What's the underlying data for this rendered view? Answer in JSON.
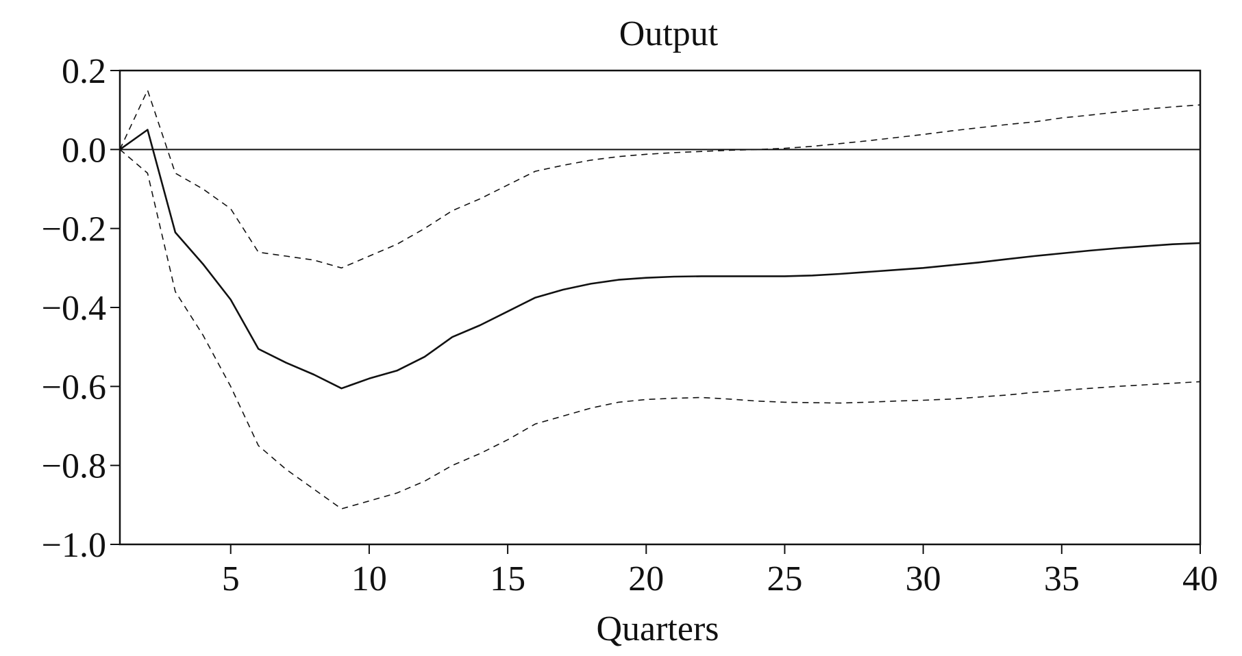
{
  "chart_data": {
    "type": "line",
    "title": "Output",
    "xlabel": "Quarters",
    "ylabel": "",
    "xlim": [
      1,
      40
    ],
    "ylim": [
      -1.0,
      0.2
    ],
    "xticks": [
      5,
      10,
      15,
      20,
      25,
      30,
      35,
      40
    ],
    "xtick_labels": [
      "5",
      "10",
      "15",
      "20",
      "25",
      "30",
      "35",
      "40"
    ],
    "yticks": [
      0.2,
      0.0,
      -0.2,
      -0.4,
      -0.6,
      -0.8,
      -1.0
    ],
    "ytick_labels": [
      "0.2",
      "0.0",
      "−0.2",
      "−0.4",
      "−0.6",
      "−0.8",
      "−1.0"
    ],
    "grid": false,
    "reference_line": 0.0,
    "x": [
      1,
      2,
      3,
      4,
      5,
      6,
      7,
      8,
      9,
      10,
      11,
      12,
      13,
      14,
      15,
      16,
      17,
      18,
      19,
      20,
      21,
      22,
      23,
      24,
      25,
      26,
      27,
      28,
      29,
      30,
      31,
      32,
      33,
      34,
      35,
      36,
      37,
      38,
      39,
      40
    ],
    "series": [
      {
        "style": "solid",
        "values": [
          0.0,
          0.05,
          -0.21,
          -0.29,
          -0.38,
          -0.505,
          -0.54,
          -0.57,
          -0.605,
          -0.58,
          -0.56,
          -0.525,
          -0.475,
          -0.445,
          -0.41,
          -0.375,
          -0.355,
          -0.34,
          -0.33,
          -0.325,
          -0.322,
          -0.321,
          -0.321,
          -0.321,
          -0.321,
          -0.319,
          -0.315,
          -0.31,
          -0.305,
          -0.3,
          -0.293,
          -0.286,
          -0.278,
          -0.27,
          -0.263,
          -0.256,
          -0.25,
          -0.245,
          -0.24,
          -0.237
        ]
      },
      {
        "style": "dashed",
        "values": [
          0.0,
          0.15,
          -0.06,
          -0.1,
          -0.15,
          -0.26,
          -0.27,
          -0.28,
          -0.3,
          -0.27,
          -0.24,
          -0.2,
          -0.155,
          -0.125,
          -0.09,
          -0.055,
          -0.04,
          -0.027,
          -0.018,
          -0.012,
          -0.008,
          -0.005,
          -0.002,
          0.0,
          0.003,
          0.008,
          0.015,
          0.022,
          0.03,
          0.038,
          0.047,
          0.055,
          0.063,
          0.07,
          0.08,
          0.087,
          0.095,
          0.102,
          0.108,
          0.113
        ]
      },
      {
        "style": "dashed",
        "values": [
          0.0,
          -0.06,
          -0.36,
          -0.47,
          -0.6,
          -0.75,
          -0.81,
          -0.86,
          -0.91,
          -0.89,
          -0.87,
          -0.84,
          -0.8,
          -0.77,
          -0.735,
          -0.695,
          -0.675,
          -0.655,
          -0.64,
          -0.633,
          -0.63,
          -0.628,
          -0.632,
          -0.637,
          -0.64,
          -0.641,
          -0.642,
          -0.64,
          -0.637,
          -0.635,
          -0.632,
          -0.627,
          -0.622,
          -0.615,
          -0.61,
          -0.605,
          -0.6,
          -0.596,
          -0.592,
          -0.588
        ]
      }
    ]
  }
}
